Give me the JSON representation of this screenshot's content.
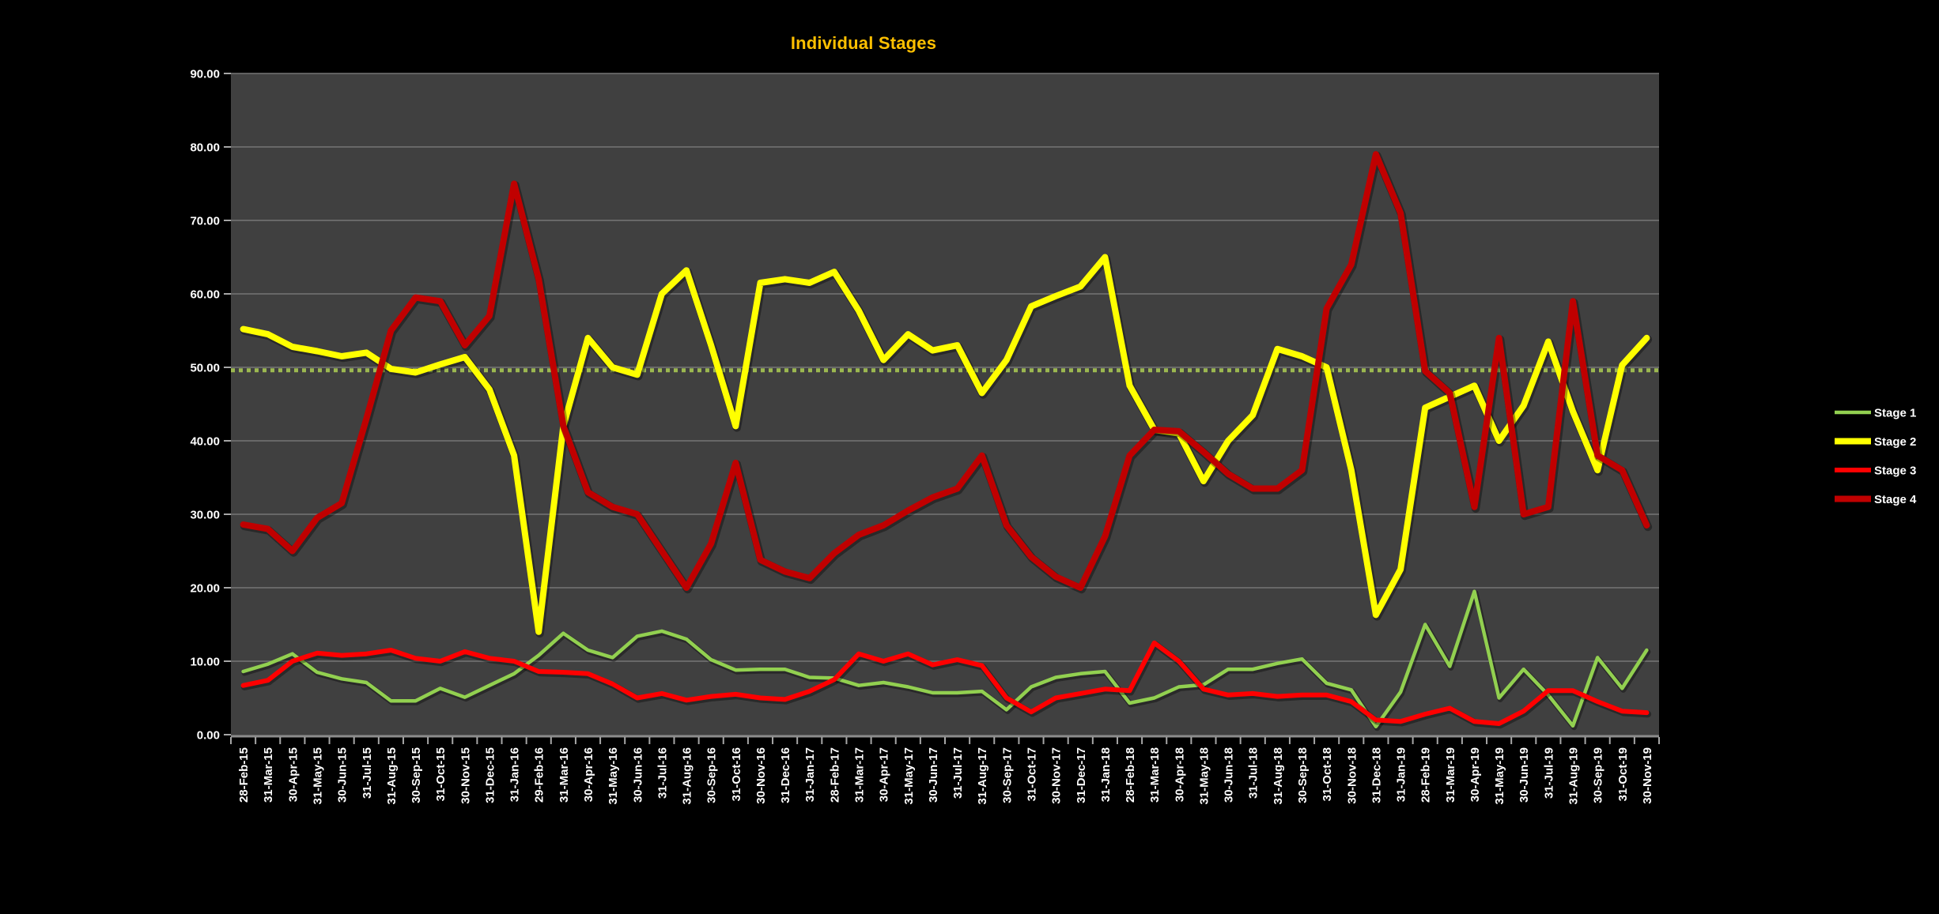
{
  "window": {
    "background": "#000000"
  },
  "chart_data": {
    "type": "line",
    "title": "Individual Stages",
    "title_color": "#FFC000",
    "plot": {
      "background": "#404040",
      "gridline_color": "#757575",
      "axis_line_color": "#8C8C8C",
      "tick_color": "#A6A6A6"
    },
    "x_axis": {
      "label_color": "#FFFFFF",
      "categories": [
        "28-Feb-15",
        "31-Mar-15",
        "30-Apr-15",
        "31-May-15",
        "30-Jun-15",
        "31-Jul-15",
        "31-Aug-15",
        "30-Sep-15",
        "31-Oct-15",
        "30-Nov-15",
        "31-Dec-15",
        "31-Jan-16",
        "29-Feb-16",
        "31-Mar-16",
        "30-Apr-16",
        "31-May-16",
        "30-Jun-16",
        "31-Jul-16",
        "31-Aug-16",
        "30-Sep-16",
        "31-Oct-16",
        "30-Nov-16",
        "31-Dec-16",
        "31-Jan-17",
        "28-Feb-17",
        "31-Mar-17",
        "30-Apr-17",
        "31-May-17",
        "30-Jun-17",
        "31-Jul-17",
        "31-Aug-17",
        "30-Sep-17",
        "31-Oct-17",
        "30-Nov-17",
        "31-Dec-17",
        "31-Jan-18",
        "28-Feb-18",
        "31-Mar-18",
        "30-Apr-18",
        "31-May-18",
        "30-Jun-18",
        "31-Jul-18",
        "31-Aug-18",
        "30-Sep-18",
        "31-Oct-18",
        "30-Nov-18",
        "31-Dec-18",
        "31-Jan-19",
        "28-Feb-19",
        "31-Mar-19",
        "30-Apr-19",
        "31-May-19",
        "30-Jun-19",
        "31-Jul-19",
        "31-Aug-19",
        "30-Sep-19",
        "31-Oct-19",
        "30-Nov-19"
      ]
    },
    "y_axis": {
      "min": 0,
      "max": 90,
      "step": 10,
      "label_color": "#FFFFFF",
      "tick_labels": [
        "0.00",
        "10.00",
        "20.00",
        "30.00",
        "40.00",
        "50.00",
        "60.00",
        "70.00",
        "80.00",
        "90.00"
      ]
    },
    "reference_line": {
      "value": 49.6,
      "color": "#9CB850",
      "style": "dotted"
    },
    "legend": {
      "position": "right",
      "entries": [
        "Stage 1",
        "Stage 2",
        "Stage 3",
        "Stage 4"
      ]
    },
    "series": [
      {
        "name": "Stage 1",
        "color": "#92D050",
        "line_width": 4.5,
        "values": [
          8.6,
          9.6,
          11.0,
          8.5,
          7.6,
          7.1,
          4.6,
          4.6,
          6.3,
          5.1,
          6.7,
          8.3,
          10.8,
          13.8,
          11.5,
          10.5,
          13.4,
          14.1,
          13.0,
          10.2,
          8.8,
          8.9,
          8.9,
          7.8,
          7.7,
          6.7,
          7.1,
          6.5,
          5.7,
          5.7,
          5.9,
          3.4,
          6.5,
          7.8,
          8.3,
          8.6,
          4.3,
          5.0,
          6.5,
          6.8,
          8.9,
          8.9,
          9.7,
          10.3,
          7.0,
          6.1,
          1.1,
          5.8,
          15.0,
          9.3,
          19.5,
          5.0,
          8.9,
          5.4,
          1.2,
          10.5,
          6.3,
          11.5
        ]
      },
      {
        "name": "Stage 2",
        "color": "#FFFF00",
        "line_width": 8,
        "values": [
          55.2,
          54.5,
          52.8,
          52.2,
          51.5,
          52.0,
          49.8,
          49.3,
          50.4,
          51.4,
          47.0,
          38.0,
          14.0,
          42.0,
          54.0,
          50.0,
          49.0,
          60.0,
          63.2,
          53.0,
          42.0,
          61.5,
          62.0,
          61.5,
          63.0,
          57.7,
          51.0,
          54.5,
          52.3,
          53.0,
          46.5,
          51.0,
          58.3,
          59.7,
          61.0,
          65.0,
          47.5,
          41.5,
          41.0,
          34.5,
          40.0,
          43.5,
          52.5,
          51.5,
          50.0,
          36.0,
          16.3,
          22.5,
          44.5,
          46.0,
          47.5,
          40.0,
          44.8,
          53.5,
          44.0,
          36.0,
          50.3,
          54.0
        ]
      },
      {
        "name": "Stage 3",
        "color": "#FF0000",
        "line_width": 6,
        "values": [
          6.7,
          7.4,
          10.0,
          11.1,
          10.8,
          11.0,
          11.5,
          10.4,
          10.0,
          11.3,
          10.4,
          10.0,
          8.6,
          8.5,
          8.3,
          6.9,
          5.0,
          5.6,
          4.7,
          5.2,
          5.5,
          5.0,
          4.8,
          5.9,
          7.5,
          11.0,
          10.0,
          11.0,
          9.5,
          10.2,
          9.4,
          5.0,
          3.1,
          5.0,
          5.6,
          6.2,
          6.0,
          12.5,
          10.0,
          6.2,
          5.4,
          5.6,
          5.2,
          5.4,
          5.4,
          4.5,
          2.0,
          1.8,
          2.8,
          3.6,
          1.8,
          1.5,
          3.2,
          6.0,
          6.0,
          4.5,
          3.2,
          3.0
        ]
      },
      {
        "name": "Stage 4",
        "color": "#C00000",
        "line_width": 8,
        "values": [
          28.6,
          28.0,
          25.0,
          29.5,
          31.5,
          43.0,
          55.0,
          59.5,
          59.0,
          53.0,
          57.0,
          75.0,
          62.0,
          42.0,
          33.0,
          31.0,
          30.0,
          25.0,
          20.0,
          26.0,
          37.0,
          23.8,
          22.2,
          21.3,
          24.7,
          27.2,
          28.5,
          30.5,
          32.3,
          33.5,
          38.0,
          28.5,
          24.2,
          21.5,
          20.0,
          27.0,
          38.0,
          41.5,
          41.3,
          38.5,
          35.5,
          33.5,
          33.5,
          36.0,
          58.0,
          64.0,
          79.0,
          71.0,
          49.5,
          46.5,
          31.0,
          54.0,
          30.0,
          31.0,
          59.0,
          38.0,
          36.0,
          28.5
        ]
      }
    ]
  }
}
